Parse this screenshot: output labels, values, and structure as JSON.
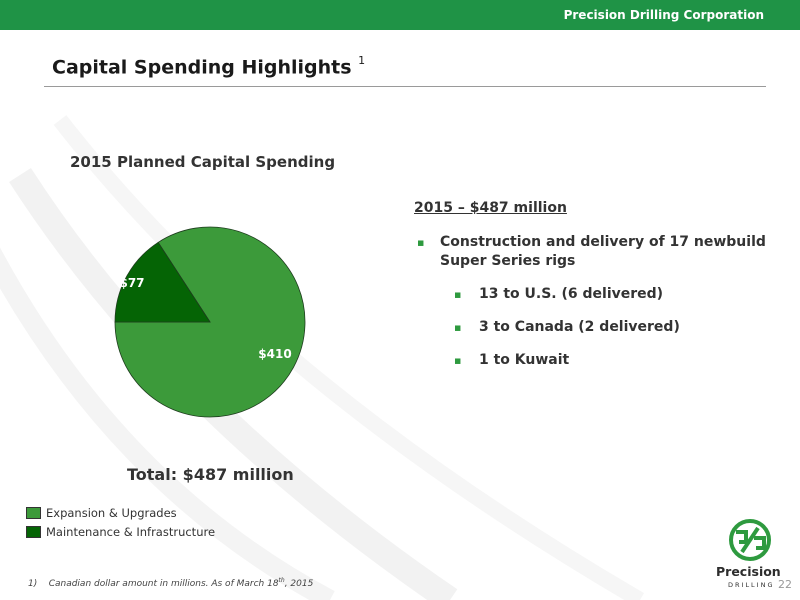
{
  "header": {
    "corporation": "Precision Drilling Corporation"
  },
  "slide": {
    "title": "Capital Spending Highlights",
    "title_footnote_ref": "1",
    "page_number": "22"
  },
  "chart_data": {
    "type": "pie",
    "title": "2015 Planned Capital Spending",
    "categories": [
      "Expansion & Upgrades",
      "Maintenance & Infrastructure"
    ],
    "values": [
      410,
      77
    ],
    "labels": [
      "$410",
      "$77"
    ],
    "colors": [
      "#3c9a3a",
      "#056405"
    ],
    "legend_position": "bottom-left",
    "total_label": "Total: $487 million"
  },
  "summary": {
    "heading": "2015 – $487 million",
    "bullets": [
      {
        "text": "Construction and delivery of 17 newbuild Super Series rigs",
        "sub": [
          "13 to U.S. (6 delivered)",
          "3 to Canada (2 delivered)",
          "1 to Kuwait"
        ]
      }
    ]
  },
  "footnote": {
    "marker": "1)",
    "text_before": "Canadian dollar amount in millions.  As of March 18",
    "superscript": "th",
    "text_after": ", 2015"
  },
  "logo": {
    "name": "Precision",
    "subtitle": "DRILLING"
  }
}
